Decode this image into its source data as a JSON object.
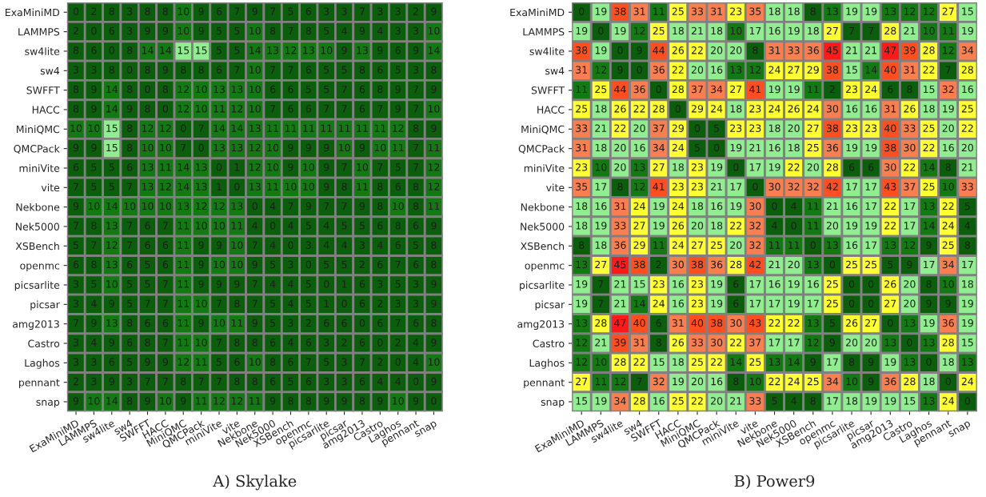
{
  "chart_data": [
    {
      "type": "heatmap",
      "title": "A) Skylake",
      "data_labels": true,
      "colors": [
        "#0b5e0b",
        "#137a13",
        "#90ee90",
        "#ffff33",
        "#fa7f50",
        "#ff4f20",
        "#ff1a1a"
      ],
      "categories": [
        "ExaMiniMD",
        "LAMMPS",
        "sw4lite",
        "sw4",
        "SWFFT",
        "HACC",
        "MiniQMC",
        "QMCPack",
        "miniVite",
        "vite",
        "Nekbone",
        "Nek5000",
        "XSBench",
        "openmc",
        "picsarlite",
        "picsar",
        "amg2013",
        "Castro",
        "Laghos",
        "pennant",
        "snap"
      ],
      "y_categories": [
        "ExaMiniMD",
        "LAMMPS",
        "sw4lite",
        "sw4",
        "SWFFT",
        "HACC",
        "MiniQMC",
        "QMCPack",
        "miniVite",
        "vite",
        "Nekbone",
        "Nek5000",
        "XSBench",
        "openmc",
        "picsarlite",
        "picsar",
        "amg2013",
        "Castro",
        "Laghos",
        "pennant",
        "snap"
      ],
      "cells": [
        [
          0,
          2,
          8,
          3,
          8,
          8,
          10,
          9,
          6,
          7,
          9,
          7,
          5,
          6,
          3,
          3,
          7,
          3,
          3,
          2,
          9
        ],
        [
          2,
          0,
          6,
          3,
          9,
          9,
          10,
          9,
          5,
          5,
          10,
          8,
          7,
          8,
          5,
          4,
          9,
          4,
          3,
          3,
          10
        ],
        [
          8,
          6,
          0,
          8,
          14,
          14,
          15,
          15,
          5,
          5,
          14,
          13,
          12,
          13,
          10,
          9,
          13,
          9,
          6,
          9,
          14
        ],
        [
          3,
          3,
          8,
          0,
          8,
          9,
          8,
          8,
          6,
          7,
          10,
          7,
          7,
          6,
          5,
          5,
          8,
          6,
          5,
          3,
          8
        ],
        [
          8,
          9,
          14,
          8,
          0,
          8,
          12,
          10,
          13,
          13,
          10,
          6,
          6,
          5,
          5,
          7,
          6,
          8,
          9,
          7,
          9
        ],
        [
          8,
          9,
          14,
          9,
          8,
          0,
          12,
          10,
          11,
          12,
          10,
          7,
          6,
          6,
          7,
          7,
          6,
          7,
          9,
          7,
          10
        ],
        [
          10,
          10,
          15,
          8,
          12,
          12,
          0,
          7,
          14,
          14,
          13,
          11,
          11,
          11,
          11,
          11,
          11,
          11,
          12,
          8,
          9
        ],
        [
          9,
          9,
          15,
          8,
          10,
          10,
          7,
          0,
          13,
          13,
          12,
          10,
          9,
          9,
          9,
          10,
          9,
          10,
          11,
          7,
          11
        ],
        [
          6,
          5,
          5,
          6,
          13,
          11,
          14,
          13,
          0,
          1,
          12,
          10,
          9,
          10,
          9,
          7,
          10,
          7,
          5,
          7,
          12
        ],
        [
          7,
          5,
          5,
          7,
          13,
          12,
          14,
          13,
          1,
          0,
          13,
          11,
          10,
          10,
          9,
          8,
          11,
          8,
          6,
          8,
          12
        ],
        [
          9,
          10,
          14,
          10,
          10,
          10,
          13,
          12,
          12,
          13,
          0,
          4,
          7,
          9,
          7,
          7,
          9,
          8,
          10,
          8,
          11
        ],
        [
          7,
          8,
          13,
          7,
          6,
          7,
          11,
          10,
          10,
          11,
          4,
          0,
          4,
          5,
          4,
          5,
          5,
          6,
          8,
          6,
          9
        ],
        [
          5,
          7,
          12,
          7,
          6,
          6,
          11,
          9,
          9,
          10,
          7,
          4,
          0,
          3,
          4,
          4,
          3,
          4,
          6,
          5,
          8
        ],
        [
          6,
          8,
          13,
          6,
          5,
          6,
          11,
          9,
          10,
          10,
          9,
          5,
          3,
          0,
          5,
          5,
          2,
          6,
          7,
          6,
          8
        ],
        [
          3,
          5,
          10,
          5,
          5,
          7,
          11,
          9,
          9,
          9,
          7,
          4,
          4,
          5,
          0,
          1,
          6,
          3,
          5,
          3,
          9
        ],
        [
          3,
          4,
          9,
          5,
          7,
          7,
          11,
          10,
          7,
          8,
          7,
          5,
          4,
          5,
          1,
          0,
          6,
          2,
          3,
          3,
          9
        ],
        [
          7,
          9,
          13,
          8,
          6,
          6,
          11,
          9,
          10,
          11,
          9,
          5,
          3,
          2,
          6,
          6,
          0,
          6,
          7,
          6,
          8
        ],
        [
          3,
          4,
          9,
          6,
          8,
          7,
          11,
          10,
          7,
          8,
          8,
          6,
          4,
          6,
          3,
          2,
          6,
          0,
          2,
          4,
          9
        ],
        [
          3,
          3,
          6,
          5,
          9,
          9,
          12,
          11,
          5,
          6,
          10,
          8,
          6,
          7,
          5,
          3,
          7,
          2,
          0,
          4,
          10
        ],
        [
          2,
          3,
          9,
          3,
          7,
          7,
          8,
          7,
          7,
          8,
          8,
          6,
          5,
          6,
          3,
          3,
          6,
          4,
          4,
          0,
          9
        ],
        [
          9,
          10,
          14,
          8,
          9,
          10,
          9,
          11,
          12,
          12,
          11,
          9,
          8,
          8,
          9,
          9,
          8,
          9,
          10,
          9,
          0
        ]
      ]
    },
    {
      "type": "heatmap",
      "title": "B) Power9",
      "data_labels": true,
      "colors": [
        "#0b5e0b",
        "#137a13",
        "#90ee90",
        "#ffff33",
        "#fa7f50",
        "#ff4f20",
        "#ff1a1a"
      ],
      "categories": [
        "ExaMiniMD",
        "LAMMPS",
        "sw4lite",
        "sw4",
        "SWFFT",
        "HACC",
        "MiniQMC",
        "QMCPack",
        "miniVite",
        "vite",
        "Nekbone",
        "Nek5000",
        "XSBench",
        "openmc",
        "picsarlite",
        "picsar",
        "amg2013",
        "Castro",
        "Laghos",
        "pennant",
        "snap"
      ],
      "y_categories": [
        "ExaMiniMD",
        "LAMMPS",
        "sw4lite",
        "sw4",
        "SWFFT",
        "HACC",
        "MiniQMC",
        "QMCPack",
        "miniVite",
        "vite",
        "Nekbone",
        "Nek5000",
        "XSBench",
        "openmc",
        "picsarlite",
        "picsar",
        "amg2013",
        "Castro",
        "Laghos",
        "pennant",
        "snap"
      ],
      "cells": [
        [
          0,
          19,
          38,
          31,
          11,
          25,
          33,
          31,
          23,
          35,
          18,
          18,
          8,
          13,
          19,
          19,
          13,
          12,
          12,
          27,
          15
        ],
        [
          19,
          0,
          19,
          12,
          25,
          18,
          21,
          18,
          10,
          17,
          16,
          19,
          18,
          27,
          7,
          7,
          28,
          21,
          10,
          11,
          19
        ],
        [
          38,
          19,
          0,
          9,
          44,
          26,
          22,
          20,
          20,
          8,
          31,
          33,
          36,
          45,
          21,
          21,
          47,
          39,
          28,
          12,
          34
        ],
        [
          31,
          12,
          9,
          0,
          36,
          22,
          20,
          16,
          13,
          12,
          24,
          27,
          29,
          38,
          15,
          14,
          40,
          31,
          22,
          7,
          28
        ],
        [
          11,
          25,
          44,
          36,
          0,
          28,
          37,
          34,
          27,
          41,
          19,
          19,
          11,
          2,
          23,
          24,
          6,
          8,
          15,
          32,
          16
        ],
        [
          25,
          18,
          26,
          22,
          28,
          0,
          29,
          24,
          18,
          23,
          24,
          26,
          24,
          30,
          16,
          16,
          31,
          26,
          18,
          19,
          25
        ],
        [
          33,
          21,
          22,
          20,
          37,
          29,
          0,
          5,
          23,
          23,
          18,
          20,
          27,
          38,
          23,
          23,
          40,
          33,
          25,
          20,
          22
        ],
        [
          31,
          18,
          20,
          16,
          34,
          24,
          5,
          0,
          19,
          21,
          16,
          18,
          25,
          36,
          19,
          19,
          38,
          30,
          22,
          16,
          20
        ],
        [
          23,
          10,
          20,
          13,
          27,
          18,
          23,
          19,
          0,
          17,
          19,
          22,
          20,
          28,
          6,
          6,
          30,
          22,
          14,
          8,
          21
        ],
        [
          35,
          17,
          8,
          12,
          41,
          23,
          23,
          21,
          17,
          0,
          30,
          32,
          32,
          42,
          17,
          17,
          43,
          37,
          25,
          10,
          33
        ],
        [
          18,
          16,
          31,
          24,
          19,
          24,
          18,
          16,
          19,
          30,
          0,
          4,
          11,
          21,
          16,
          17,
          22,
          17,
          13,
          22,
          5
        ],
        [
          18,
          19,
          33,
          27,
          19,
          26,
          20,
          18,
          22,
          32,
          4,
          0,
          11,
          20,
          19,
          19,
          22,
          17,
          14,
          24,
          4
        ],
        [
          8,
          18,
          36,
          29,
          11,
          24,
          27,
          25,
          20,
          32,
          11,
          11,
          0,
          13,
          16,
          17,
          13,
          12,
          9,
          25,
          8
        ],
        [
          13,
          27,
          45,
          38,
          2,
          30,
          38,
          36,
          28,
          42,
          21,
          20,
          13,
          0,
          25,
          25,
          5,
          9,
          17,
          34,
          17
        ],
        [
          19,
          7,
          21,
          15,
          23,
          16,
          23,
          19,
          6,
          17,
          16,
          19,
          16,
          25,
          0,
          0,
          26,
          20,
          8,
          10,
          18
        ],
        [
          19,
          7,
          21,
          14,
          24,
          16,
          23,
          19,
          6,
          17,
          17,
          19,
          17,
          25,
          0,
          0,
          27,
          20,
          9,
          9,
          19
        ],
        [
          13,
          28,
          47,
          40,
          6,
          31,
          40,
          38,
          30,
          43,
          22,
          22,
          13,
          5,
          26,
          27,
          0,
          13,
          19,
          36,
          19
        ],
        [
          12,
          21,
          39,
          31,
          8,
          26,
          33,
          30,
          22,
          37,
          17,
          17,
          12,
          9,
          20,
          20,
          13,
          0,
          13,
          28,
          15
        ],
        [
          12,
          10,
          28,
          22,
          15,
          18,
          25,
          22,
          14,
          25,
          13,
          14,
          9,
          17,
          8,
          9,
          19,
          13,
          0,
          18,
          13
        ],
        [
          27,
          11,
          12,
          7,
          32,
          19,
          20,
          16,
          8,
          10,
          22,
          24,
          25,
          34,
          10,
          9,
          36,
          28,
          18,
          0,
          24
        ],
        [
          15,
          19,
          34,
          28,
          16,
          25,
          22,
          20,
          21,
          33,
          5,
          4,
          8,
          17,
          18,
          19,
          19,
          15,
          13,
          24,
          0
        ]
      ]
    }
  ]
}
